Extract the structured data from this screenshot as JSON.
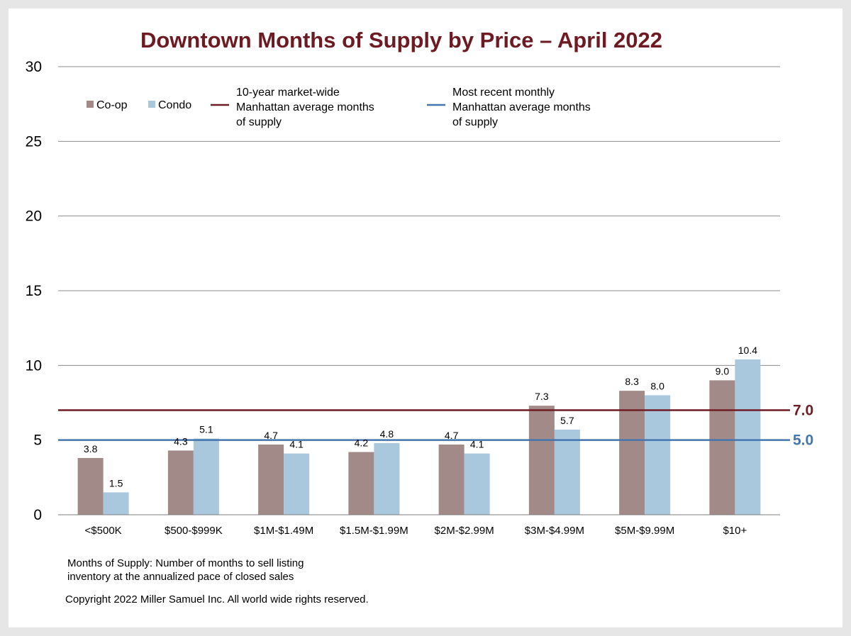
{
  "chart_data": {
    "type": "bar",
    "title": "Downtown Months of Supply by Price – April 2022",
    "categories": [
      "<$500K",
      "$500-$999K",
      "$1M-$1.49M",
      "$1.5M-$1.99M",
      "$2M-$2.99M",
      "$3M-$4.99M",
      "$5M-$9.99M",
      "$10+"
    ],
    "series": [
      {
        "name": "Co-op",
        "color": "#a28a88",
        "values": [
          3.8,
          4.3,
          4.7,
          4.2,
          4.7,
          7.3,
          8.3,
          9.0
        ],
        "labels": [
          "3.8",
          "4.3",
          "4.7",
          "4.2",
          "4.7",
          "7.3",
          "8.3",
          "9.0"
        ]
      },
      {
        "name": "Condo",
        "color": "#a9c8dd",
        "values": [
          1.5,
          5.1,
          4.1,
          4.8,
          4.1,
          5.7,
          8.0,
          10.4
        ],
        "labels": [
          "1.5",
          "5.1",
          "4.1",
          "4.8",
          "4.1",
          "5.7",
          "8.0",
          "10.4"
        ]
      }
    ],
    "reference_lines": [
      {
        "name": [
          "10-year market-wide",
          "Manhattan average months",
          "of supply"
        ],
        "value": 7.0,
        "label": "7.0",
        "color": "#701c24"
      },
      {
        "name": [
          "Most recent monthly",
          "Manhattan average months",
          "of supply"
        ],
        "value": 5.0,
        "label": "5.0",
        "color": "#4376ad"
      }
    ],
    "ylim": [
      0,
      30
    ],
    "yticks": [
      "0",
      "5",
      "10",
      "15",
      "20",
      "25",
      "30"
    ],
    "grid": true,
    "legend_position": "top-left",
    "title_color": "#6e1a23"
  },
  "notes": [
    "Months of Supply: Number of months to sell listing",
    "inventory at the annualized pace of closed sales"
  ],
  "copyright": "Copyright 2022 Miller Samuel Inc.  All world wide rights reserved."
}
